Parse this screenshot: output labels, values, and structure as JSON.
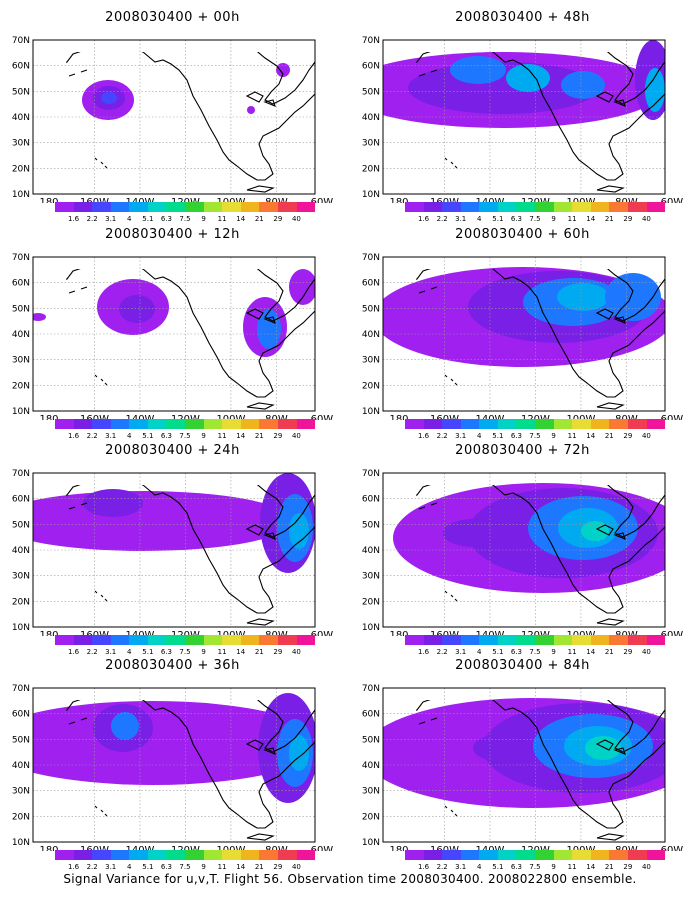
{
  "caption": "Signal Variance for u,v,T. Flight 56. Observation time 2008030400. 2008022800 ensemble.",
  "lat_labels": [
    "70N",
    "60N",
    "50N",
    "40N",
    "30N",
    "20N",
    "10N"
  ],
  "lon_labels": [
    "180",
    "160W",
    "140W",
    "120W",
    "100W",
    "80W",
    "60W"
  ],
  "colorbar": {
    "labels": [
      "1.6",
      "2.2",
      "3.1",
      "4",
      "5.1",
      "6.3",
      "7.5",
      "9",
      "11",
      "14",
      "21",
      "29",
      "40"
    ],
    "colors": [
      "#a020f0",
      "#7a1fe6",
      "#4646ff",
      "#1e78ff",
      "#00aaf0",
      "#00d2c8",
      "#00dc8c",
      "#32d232",
      "#a0e632",
      "#e6dc32",
      "#f0b41e",
      "#fa7832",
      "#f03c50",
      "#f0149a"
    ]
  },
  "panels": [
    {
      "title": "2008030400 + 00h"
    },
    {
      "title": "2008030400 + 48h"
    },
    {
      "title": "2008030400 + 12h"
    },
    {
      "title": "2008030400 + 60h"
    },
    {
      "title": "2008030400 + 24h"
    },
    {
      "title": "2008030400 + 72h"
    },
    {
      "title": "2008030400 + 36h"
    },
    {
      "title": "2008030400 + 84h"
    }
  ]
}
